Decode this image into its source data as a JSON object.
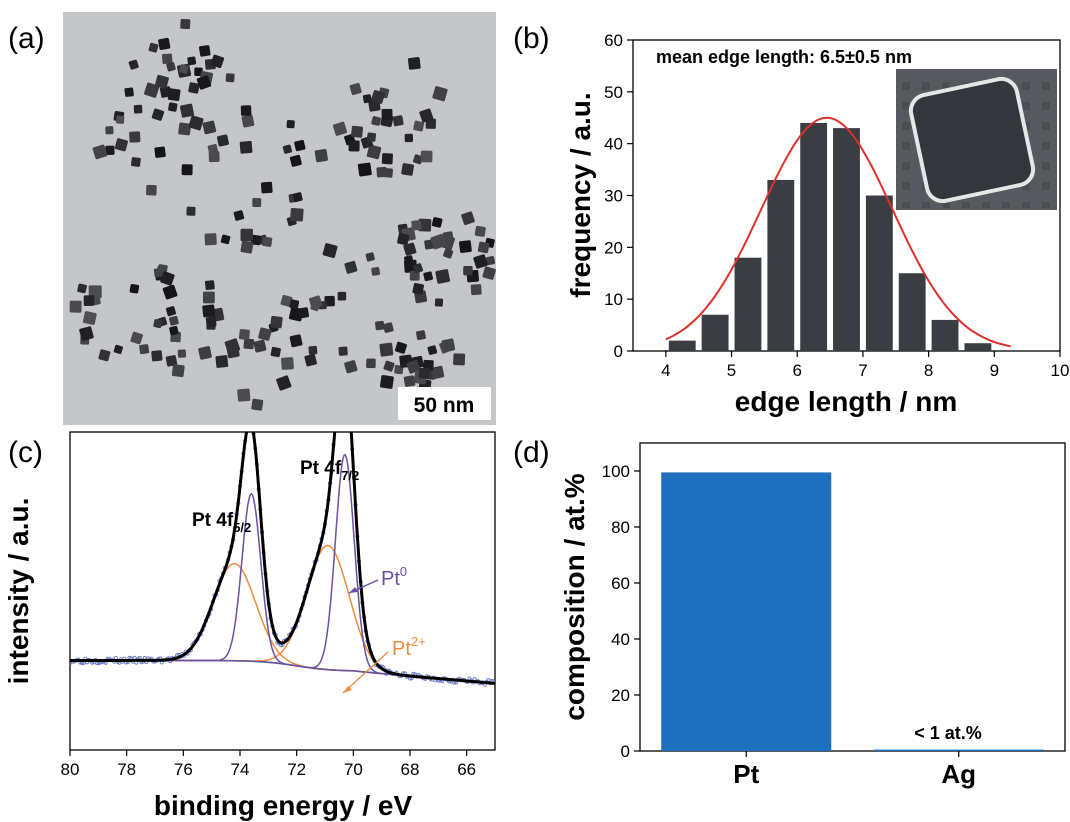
{
  "panels": {
    "a": {
      "label": "(a)",
      "scale_bar": "50 nm"
    },
    "b": {
      "label": "(b)",
      "annotation": "mean edge length: 6.5±0.5 nm"
    },
    "c": {
      "label": "(c)",
      "peak1_main": "Pt 4f",
      "peak1_sub": "5/2",
      "peak2_main": "Pt 4f",
      "peak2_sub": "7/2",
      "species1_main": "Pt",
      "species1_sup": "0",
      "species2_main": "Pt",
      "species2_sup": "2+"
    },
    "d": {
      "label": "(d)",
      "annotation": "< 1 at.%"
    }
  },
  "colors": {
    "hist_bar": "#3a3d42",
    "gauss_fit": "#e0302a",
    "pt0": "#6a4fa3",
    "pt2": "#f08a3c",
    "background_fit": "#2e8b3a",
    "raw_points": "#6f7fc7",
    "envelope": "#000000",
    "composition_bar": "#1f6fbf"
  },
  "chart_data": [
    {
      "panel": "b",
      "type": "bar",
      "title": "",
      "xlabel": "edge length / nm",
      "ylabel": "frequency / a.u.",
      "xlim": [
        3.5,
        10
      ],
      "ylim": [
        0,
        60
      ],
      "xticks": [
        4,
        5,
        6,
        7,
        8,
        9,
        10
      ],
      "yticks": [
        0,
        10,
        20,
        30,
        40,
        50,
        60
      ],
      "x": [
        4.25,
        4.75,
        5.25,
        5.75,
        6.25,
        6.75,
        7.25,
        7.75,
        8.25,
        8.75
      ],
      "values": [
        2,
        7,
        18,
        33,
        44,
        43,
        30,
        15,
        6,
        1.5
      ],
      "fit": {
        "type": "gaussian",
        "center": 6.45,
        "amplitude": 45,
        "sigma": 1.0
      }
    },
    {
      "panel": "c",
      "type": "line",
      "title": "",
      "xlabel": "binding energy / eV",
      "ylabel": "intensity / a.u.",
      "xlim": [
        80,
        65
      ],
      "xticks": [
        80,
        78,
        76,
        74,
        72,
        70,
        68,
        66
      ],
      "y_ticks_shown": false,
      "peaks": [
        {
          "species": "Pt0",
          "position": 73.6,
          "height": 0.62
        },
        {
          "species": "Pt0",
          "position": 70.3,
          "height": 0.8
        },
        {
          "species": "Pt2+",
          "position": 74.2,
          "height": 0.36
        },
        {
          "species": "Pt2+",
          "position": 70.9,
          "height": 0.46
        }
      ]
    },
    {
      "panel": "d",
      "type": "bar",
      "title": "",
      "xlabel": "",
      "ylabel": "composition / at.%",
      "categories": [
        "Pt",
        "Ag"
      ],
      "values": [
        99.5,
        0.5
      ],
      "ylim": [
        0,
        110
      ],
      "yticks": [
        0,
        20,
        40,
        60,
        80,
        100
      ]
    }
  ]
}
